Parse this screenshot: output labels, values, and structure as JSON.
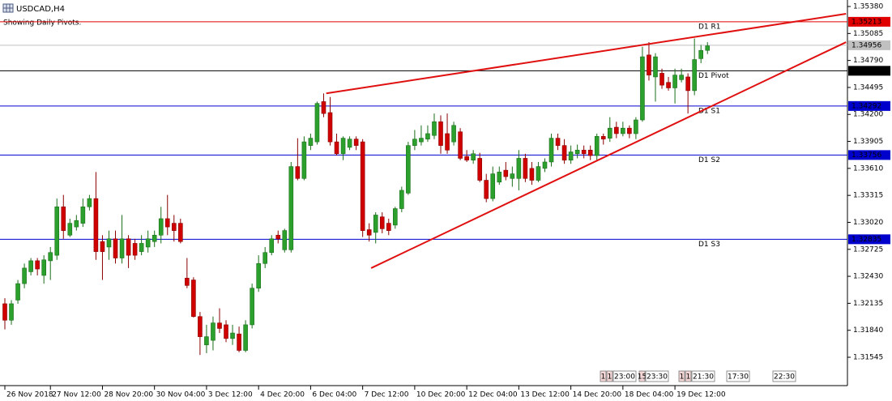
{
  "chart_data": {
    "type": "candlestick",
    "title": "USDCAD,H4",
    "subtitle": "Showing Daily Pivots.",
    "categories": [
      "26 Nov 2018",
      null,
      null,
      null,
      null,
      null,
      null,
      "27 Nov 12:00",
      null,
      null,
      null,
      null,
      null,
      null,
      null,
      "28 Nov 20:00",
      null,
      null,
      null,
      null,
      null,
      null,
      null,
      "30 Nov 04:00",
      null,
      null,
      null,
      null,
      null,
      null,
      null,
      "3 Dec 12:00",
      null,
      null,
      null,
      null,
      null,
      null,
      null,
      "4 Dec 20:00",
      null,
      null,
      null,
      null,
      null,
      null,
      null,
      "6 Dec 04:00",
      null,
      null,
      null,
      null,
      null,
      null,
      null,
      "7 Dec 12:00",
      null,
      null,
      null,
      null,
      null,
      null,
      null,
      "10 Dec 20:00",
      null,
      null,
      null,
      null,
      null,
      null,
      null,
      "12 Dec 04:00",
      null,
      null,
      null,
      null,
      null,
      null,
      null,
      "13 Dec 12:00",
      null,
      null,
      null,
      null,
      null,
      null,
      null,
      "14 Dec 20:00",
      null,
      null,
      null,
      null,
      null,
      null,
      null,
      "18 Dec 04:00",
      null,
      null,
      null,
      null,
      null,
      null,
      null,
      "19 Dec 12:00",
      null,
      null,
      null,
      null,
      null
    ],
    "open": [
      1.3213,
      1.3195,
      1.3217,
      1.3235,
      1.3248,
      1.326,
      1.3244,
      1.326,
      1.3266,
      1.3319,
      1.3288,
      1.3297,
      1.3301,
      1.3319,
      1.3328,
      1.3281,
      1.3275,
      1.3284,
      1.3263,
      1.3284,
      1.3279,
      1.327,
      1.3275,
      1.3281,
      1.3288,
      1.3306,
      1.3301,
      1.3301,
      1.3241,
      1.3239,
      1.3199,
      1.3168,
      1.3173,
      1.3192,
      1.319,
      1.3175,
      1.318,
      1.3162,
      1.319,
      1.323,
      1.3257,
      1.3269,
      1.3288,
      1.3272,
      1.3272,
      1.3363,
      1.335,
      1.3386,
      1.339,
      1.3434,
      1.3422,
      1.339,
      1.3377,
      1.3384,
      1.3393,
      1.339,
      1.3294,
      1.3291,
      1.3308,
      1.3301,
      1.3299,
      1.3317,
      1.3334,
      1.3386,
      1.339,
      1.3393,
      1.3397,
      1.3412,
      1.3399,
      1.339,
      1.3401,
      1.3374,
      1.337,
      1.3372,
      1.3348,
      1.3328,
      1.3346,
      1.3359,
      1.335,
      1.335,
      1.3372,
      1.3361,
      1.3348,
      1.3361,
      1.3368,
      1.3394,
      1.3386,
      1.337,
      1.3377,
      1.3381,
      1.3381,
      1.3375,
      1.3396,
      1.3394,
      1.3406,
      1.3399,
      1.3405,
      1.3399,
      1.3414,
      1.3485,
      1.3461,
      1.3465,
      1.3455,
      1.3449,
      1.3458,
      1.3461,
      1.3446,
      1.3481,
      1.349
    ],
    "high": [
      1.3219,
      1.3217,
      1.3239,
      1.3257,
      1.3263,
      1.3263,
      1.3266,
      1.3275,
      1.3328,
      1.3332,
      1.3306,
      1.331,
      1.3328,
      1.3332,
      1.3357,
      1.3288,
      1.3293,
      1.3293,
      1.331,
      1.3288,
      1.3284,
      1.3288,
      1.3293,
      1.3293,
      1.3319,
      1.3332,
      1.331,
      1.3306,
      1.3263,
      1.3242,
      1.3204,
      1.319,
      1.3199,
      1.3208,
      1.3195,
      1.319,
      1.3188,
      1.3195,
      1.3235,
      1.3266,
      1.3275,
      1.3288,
      1.3293,
      1.3295,
      1.3368,
      1.3394,
      1.3396,
      1.3399,
      1.3434,
      1.3443,
      1.3439,
      1.3399,
      1.3396,
      1.3396,
      1.3396,
      1.3393,
      1.3301,
      1.3313,
      1.3313,
      1.3306,
      1.3319,
      1.3341,
      1.339,
      1.3403,
      1.3408,
      1.3408,
      1.3421,
      1.3419,
      1.3421,
      1.3412,
      1.3405,
      1.3381,
      1.3381,
      1.3378,
      1.3355,
      1.3363,
      1.3363,
      1.3368,
      1.3363,
      1.3381,
      1.3377,
      1.3368,
      1.3368,
      1.3372,
      1.3399,
      1.3399,
      1.3393,
      1.3386,
      1.3387,
      1.3386,
      1.3386,
      1.3399,
      1.3399,
      1.3417,
      1.3412,
      1.3412,
      1.3408,
      1.3417,
      1.3494,
      1.3499,
      1.3487,
      1.347,
      1.3461,
      1.347,
      1.347,
      1.3465,
      1.3503,
      1.3496,
      1.3499
    ],
    "low": [
      1.3185,
      1.319,
      1.3213,
      1.323,
      1.3244,
      1.3244,
      1.3235,
      1.3239,
      1.3261,
      1.3284,
      1.3286,
      1.3293,
      1.3297,
      1.3315,
      1.3261,
      1.3239,
      1.3261,
      1.3257,
      1.3257,
      1.3252,
      1.3261,
      1.3266,
      1.3269,
      1.3275,
      1.3279,
      1.3288,
      1.3281,
      1.3279,
      1.323,
      1.3198,
      1.3157,
      1.3159,
      1.3162,
      1.3181,
      1.3171,
      1.3168,
      1.316,
      1.316,
      1.3186,
      1.3226,
      1.3252,
      1.3266,
      1.3279,
      1.3269,
      1.3269,
      1.3348,
      1.3348,
      1.3381,
      1.3387,
      1.3417,
      1.3386,
      1.3375,
      1.337,
      1.3381,
      1.3381,
      1.3286,
      1.3281,
      1.3279,
      1.329,
      1.3288,
      1.3295,
      1.3313,
      1.3332,
      1.3381,
      1.3386,
      1.339,
      1.3393,
      1.3377,
      1.3377,
      1.3386,
      1.337,
      1.3368,
      1.3366,
      1.3346,
      1.3324,
      1.3325,
      1.3343,
      1.3348,
      1.3341,
      1.3337,
      1.3346,
      1.3343,
      1.3346,
      1.3357,
      1.3363,
      1.3381,
      1.3366,
      1.3366,
      1.3372,
      1.3372,
      1.337,
      1.337,
      1.3387,
      1.339,
      1.3394,
      1.3396,
      1.3394,
      1.3393,
      1.3412,
      1.3457,
      1.3434,
      1.3448,
      1.3446,
      1.3432,
      1.3455,
      1.3421,
      1.3441,
      1.3476,
      1.3486
    ],
    "close": [
      1.3195,
      1.3213,
      1.3235,
      1.3252,
      1.326,
      1.3251,
      1.3261,
      1.3269,
      1.3319,
      1.3293,
      1.3301,
      1.3304,
      1.3319,
      1.3328,
      1.327,
      1.327,
      1.3284,
      1.3263,
      1.3284,
      1.3266,
      1.3266,
      1.3279,
      1.3284,
      1.3288,
      1.3306,
      1.3297,
      1.3293,
      1.3281,
      1.3233,
      1.3199,
      1.3177,
      1.3177,
      1.3192,
      1.3186,
      1.3175,
      1.3181,
      1.3162,
      1.319,
      1.323,
      1.3257,
      1.3269,
      1.3284,
      1.3284,
      1.3293,
      1.3363,
      1.335,
      1.339,
      1.3394,
      1.3432,
      1.3421,
      1.339,
      1.3377,
      1.3394,
      1.3393,
      1.3386,
      1.3293,
      1.3288,
      1.331,
      1.3295,
      1.3293,
      1.3317,
      1.3337,
      1.3386,
      1.3393,
      1.3394,
      1.3399,
      1.3412,
      1.3386,
      1.3381,
      1.3408,
      1.3372,
      1.337,
      1.3377,
      1.3348,
      1.3328,
      1.3355,
      1.3357,
      1.3352,
      1.3355,
      1.3372,
      1.335,
      1.3348,
      1.3363,
      1.3368,
      1.3394,
      1.3386,
      1.337,
      1.3379,
      1.3381,
      1.3377,
      1.3375,
      1.3396,
      1.3393,
      1.3405,
      1.3399,
      1.3405,
      1.3399,
      1.3414,
      1.3483,
      1.3463,
      1.3483,
      1.3452,
      1.3449,
      1.3463,
      1.3463,
      1.3446,
      1.348,
      1.349,
      1.3495
    ],
    "up_color": "#2ca02c",
    "down_color": "#d00000",
    "ylim": [
      1.31235,
      1.35451
    ],
    "yticks": [
      {
        "value": 1.3538,
        "label": "1.35380"
      },
      1.35085,
      {
        "value": 1.3479,
        "label": "1.34790"
      },
      1.34495,
      {
        "value": 1.342,
        "label": "1.34200"
      },
      1.33905,
      {
        "value": 1.3361,
        "label": "1.33610"
      },
      1.33315,
      {
        "value": 1.3302,
        "label": "1.33020"
      },
      1.32725,
      {
        "value": 1.3243,
        "label": "1.32430"
      },
      1.32135,
      {
        "value": 1.3184,
        "label": "1.31840"
      },
      1.31545
    ],
    "grid": false,
    "pivots": [
      {
        "name": "D1 R1",
        "value": 1.35213,
        "color": "#e00000"
      },
      {
        "value": 1.34956,
        "color": "#c0c0c0"
      },
      {
        "name": "D1 Pivot",
        "value": 1.34677,
        "color": "#000000"
      },
      {
        "name": "D1 S1",
        "value": 1.34292,
        "color": "#0000cd"
      },
      {
        "name": "D1 S2",
        "value": 1.33756,
        "color": "#0000cd"
      },
      {
        "name": "D1 S3",
        "value": 1.32835,
        "color": "#0000cd"
      }
    ],
    "trendlines": [
      {
        "x": [
          49.4,
          129.3
        ],
        "y": [
          1.3443,
          1.353
        ],
        "color": "#e01010"
      },
      {
        "x": [
          56.3,
          129.3
        ],
        "y": [
          1.3252,
          1.3499
        ],
        "color": "#e01010"
      }
    ],
    "time_boxes": [
      [
        "1",
        "1",
        "23:00"
      ],
      [
        "15",
        "23:30"
      ],
      [
        "1",
        "1",
        "21:30"
      ],
      [
        "17:30"
      ],
      [
        "22:30"
      ]
    ]
  }
}
